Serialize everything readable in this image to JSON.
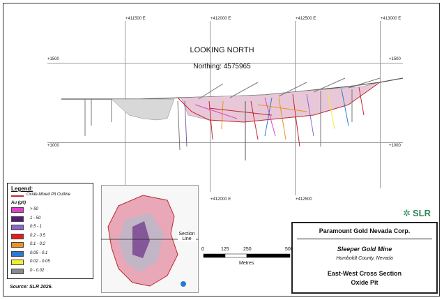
{
  "view": {
    "direction": "LOOKING NORTH",
    "northing": "Northing: 4575965"
  },
  "grid": {
    "eastings": [
      "+411500 E",
      "+412000 E",
      "+412500 E",
      "+413000 E"
    ],
    "eastings_bottom": [
      "+412000 E",
      "+412500"
    ],
    "elev_top": "+1500",
    "elev_bottom": "+1000"
  },
  "legend": {
    "title": "Legend:",
    "outline": "Oxide-Mixed Pit Outline",
    "unit": "Au (g/t)",
    "items": [
      {
        "label": "> 50",
        "color": "#e040c8"
      },
      {
        "label": "1 - 50",
        "color": "#5a1a7a"
      },
      {
        "label": "0.5 - 1",
        "color": "#8a6ac8"
      },
      {
        "label": "0.2 - 0.5",
        "color": "#e02020"
      },
      {
        "label": "0.1 - 0.2",
        "color": "#f0901a"
      },
      {
        "label": "0.05 - 0.1",
        "color": "#2a7ad0"
      },
      {
        "label": "0.02 - 0.05",
        "color": "#f0f030"
      },
      {
        "label": "0 - 0.02",
        "color": "#8a8a8a"
      }
    ]
  },
  "inset": {
    "section_label": "Section Line"
  },
  "scale": {
    "ticks": [
      "0",
      "125",
      "250",
      "500"
    ],
    "unit": "Metres"
  },
  "logo": {
    "text": "SLR"
  },
  "titleblock": {
    "company": "Paramount Gold Nevada Corp.",
    "project": "Sleeper Gold Mine",
    "location": "Humboldt County, Nevada",
    "title1": "East-West Cross Section",
    "title2": "Oxide Pit"
  },
  "source": "Source:  SLR 2026."
}
